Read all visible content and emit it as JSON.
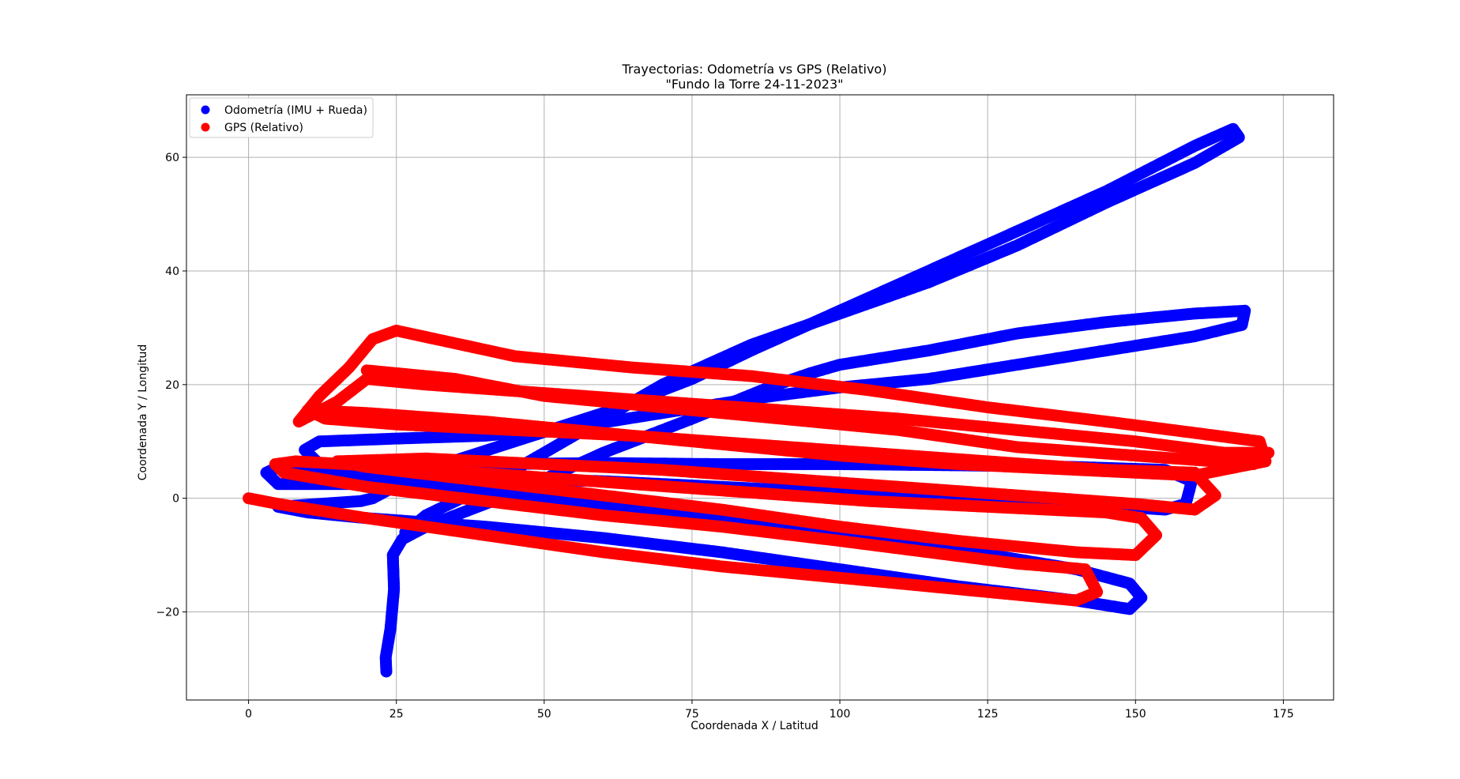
{
  "chart_data": {
    "type": "scatter",
    "title": "Trayectorias: Odometría vs GPS (Relativo)",
    "subtitle": "\"Fundo la Torre 24-11-2023\"",
    "xlabel": "Coordenada X / Latitud",
    "ylabel": "Coordenada Y / Longitud",
    "xlim": [
      -10.5,
      183.5
    ],
    "ylim": [
      -35.5,
      71
    ],
    "xticks": [
      0,
      25,
      50,
      75,
      100,
      125,
      150,
      175
    ],
    "yticks": [
      -20,
      0,
      20,
      40,
      60
    ],
    "grid": true,
    "legend_position": "top-left",
    "series": [
      {
        "name": "Odometría (IMU + Rueda)",
        "color": "#0000ff",
        "points": [
          [
            23.3,
            -30.5
          ],
          [
            23.2,
            -28
          ],
          [
            24,
            -23
          ],
          [
            24.6,
            -16
          ],
          [
            24.4,
            -10
          ],
          [
            26,
            -7.2
          ],
          [
            30,
            -5
          ],
          [
            45,
            1
          ],
          [
            60,
            8
          ],
          [
            75,
            14
          ],
          [
            88,
            19.5
          ],
          [
            95,
            22
          ],
          [
            100,
            23.5
          ],
          [
            115,
            26
          ],
          [
            130,
            29
          ],
          [
            145,
            31
          ],
          [
            160,
            32.5
          ],
          [
            168.5,
            33
          ],
          [
            168,
            30.5
          ],
          [
            160,
            28.5
          ],
          [
            145,
            26
          ],
          [
            130,
            23.5
          ],
          [
            115,
            21
          ],
          [
            100,
            19.5
          ],
          [
            85,
            17.5
          ],
          [
            70,
            15
          ],
          [
            55,
            12.5
          ],
          [
            40,
            11
          ],
          [
            25,
            10.5
          ],
          [
            12,
            10
          ],
          [
            9.5,
            8.5
          ],
          [
            12,
            6
          ],
          [
            25,
            5.5
          ],
          [
            40,
            6
          ],
          [
            60,
            6.2
          ],
          [
            80,
            6
          ],
          [
            100,
            6
          ],
          [
            120,
            5.8
          ],
          [
            140,
            5.5
          ],
          [
            155,
            5
          ],
          [
            159.5,
            3
          ],
          [
            158.5,
            -1
          ],
          [
            155,
            -2
          ],
          [
            140,
            -1
          ],
          [
            120,
            0
          ],
          [
            100,
            1
          ],
          [
            80,
            2
          ],
          [
            60,
            3
          ],
          [
            40,
            3.5
          ],
          [
            20,
            2.5
          ],
          [
            5,
            2.5
          ],
          [
            3,
            4.5
          ],
          [
            5,
            5.5
          ],
          [
            20,
            4
          ],
          [
            40,
            1.5
          ],
          [
            60,
            -1
          ],
          [
            80,
            -3.5
          ],
          [
            100,
            -6
          ],
          [
            120,
            -9
          ],
          [
            140,
            -12.5
          ],
          [
            149,
            -15
          ],
          [
            151,
            -17.5
          ],
          [
            149,
            -19.5
          ],
          [
            140,
            -18
          ],
          [
            120,
            -15.5
          ],
          [
            100,
            -12.5
          ],
          [
            80,
            -9.5
          ],
          [
            60,
            -7
          ],
          [
            40,
            -5
          ],
          [
            20,
            -3.5
          ],
          [
            10,
            -2.5
          ],
          [
            5,
            -1.5
          ],
          [
            19,
            -0.5
          ],
          [
            21,
            0
          ],
          [
            30,
            5
          ],
          [
            45,
            10
          ],
          [
            60,
            15
          ],
          [
            75,
            21
          ],
          [
            85,
            26
          ],
          [
            100,
            33
          ],
          [
            115,
            40
          ],
          [
            130,
            47
          ],
          [
            145,
            54
          ],
          [
            160,
            62
          ],
          [
            166.5,
            65
          ],
          [
            167.5,
            63.5
          ],
          [
            160,
            59
          ],
          [
            145,
            52
          ],
          [
            130,
            44.5
          ],
          [
            115,
            38
          ],
          [
            100,
            32.5
          ],
          [
            85,
            27
          ],
          [
            70,
            20
          ],
          [
            55,
            11
          ],
          [
            40,
            2
          ],
          [
            30,
            -3
          ],
          [
            26.5,
            -6
          ]
        ]
      },
      {
        "name": "GPS (Relativo)",
        "color": "#ff0000",
        "points": [
          [
            0,
            0
          ],
          [
            5,
            -1
          ],
          [
            20,
            -3.5
          ],
          [
            40,
            -6.5
          ],
          [
            60,
            -9.5
          ],
          [
            80,
            -12
          ],
          [
            100,
            -14
          ],
          [
            120,
            -16
          ],
          [
            135,
            -17.5
          ],
          [
            140,
            -18
          ],
          [
            143.5,
            -16.5
          ],
          [
            141.5,
            -12.5
          ],
          [
            130,
            -11.5
          ],
          [
            115,
            -9.5
          ],
          [
            100,
            -7.5
          ],
          [
            80,
            -5
          ],
          [
            60,
            -3
          ],
          [
            40,
            -0.5
          ],
          [
            20,
            2
          ],
          [
            6,
            4.5
          ],
          [
            4.5,
            6
          ],
          [
            8,
            6.5
          ],
          [
            25,
            5.5
          ],
          [
            45,
            4
          ],
          [
            65,
            2.5
          ],
          [
            85,
            1
          ],
          [
            105,
            -0.5
          ],
          [
            125,
            -1.5
          ],
          [
            145,
            -2.5
          ],
          [
            151,
            -3.5
          ],
          [
            153.5,
            -6.5
          ],
          [
            150,
            -10
          ],
          [
            140,
            -9.5
          ],
          [
            120,
            -7.5
          ],
          [
            100,
            -5
          ],
          [
            80,
            -2
          ],
          [
            60,
            0.5
          ],
          [
            40,
            3
          ],
          [
            20,
            5.5
          ],
          [
            15,
            6.5
          ],
          [
            30,
            7
          ],
          [
            50,
            6
          ],
          [
            70,
            5
          ],
          [
            90,
            3.5
          ],
          [
            110,
            2
          ],
          [
            130,
            0.5
          ],
          [
            150,
            -1
          ],
          [
            160,
            -2
          ],
          [
            163.5,
            0.5
          ],
          [
            160,
            4.5
          ],
          [
            145,
            5
          ],
          [
            125,
            6.5
          ],
          [
            105,
            8
          ],
          [
            85,
            9.5
          ],
          [
            65,
            11
          ],
          [
            45,
            12
          ],
          [
            25,
            13
          ],
          [
            13,
            14
          ],
          [
            10,
            15.5
          ],
          [
            20,
            15
          ],
          [
            40,
            13.5
          ],
          [
            60,
            11.5
          ],
          [
            80,
            9.5
          ],
          [
            100,
            7.5
          ],
          [
            120,
            6
          ],
          [
            140,
            5
          ],
          [
            160,
            4
          ],
          [
            172,
            6.5
          ],
          [
            171,
            10
          ],
          [
            160,
            11.5
          ],
          [
            145,
            13.5
          ],
          [
            125,
            16
          ],
          [
            105,
            19
          ],
          [
            85,
            21.5
          ],
          [
            65,
            23
          ],
          [
            45,
            25
          ],
          [
            25,
            29.5
          ],
          [
            21,
            28
          ],
          [
            17,
            23
          ],
          [
            12,
            18
          ],
          [
            8.5,
            13.5
          ],
          [
            15,
            17
          ],
          [
            20,
            21
          ],
          [
            30,
            20
          ],
          [
            50,
            18.5
          ],
          [
            70,
            17
          ],
          [
            90,
            15.5
          ],
          [
            110,
            14
          ],
          [
            130,
            12
          ],
          [
            150,
            10
          ],
          [
            165,
            8
          ],
          [
            172.5,
            8
          ],
          [
            170,
            6
          ],
          [
            150,
            7.5
          ],
          [
            130,
            9
          ],
          [
            110,
            12
          ],
          [
            90,
            14
          ],
          [
            70,
            16
          ],
          [
            50,
            18
          ],
          [
            35,
            21
          ],
          [
            20,
            22.5
          ]
        ]
      }
    ]
  }
}
